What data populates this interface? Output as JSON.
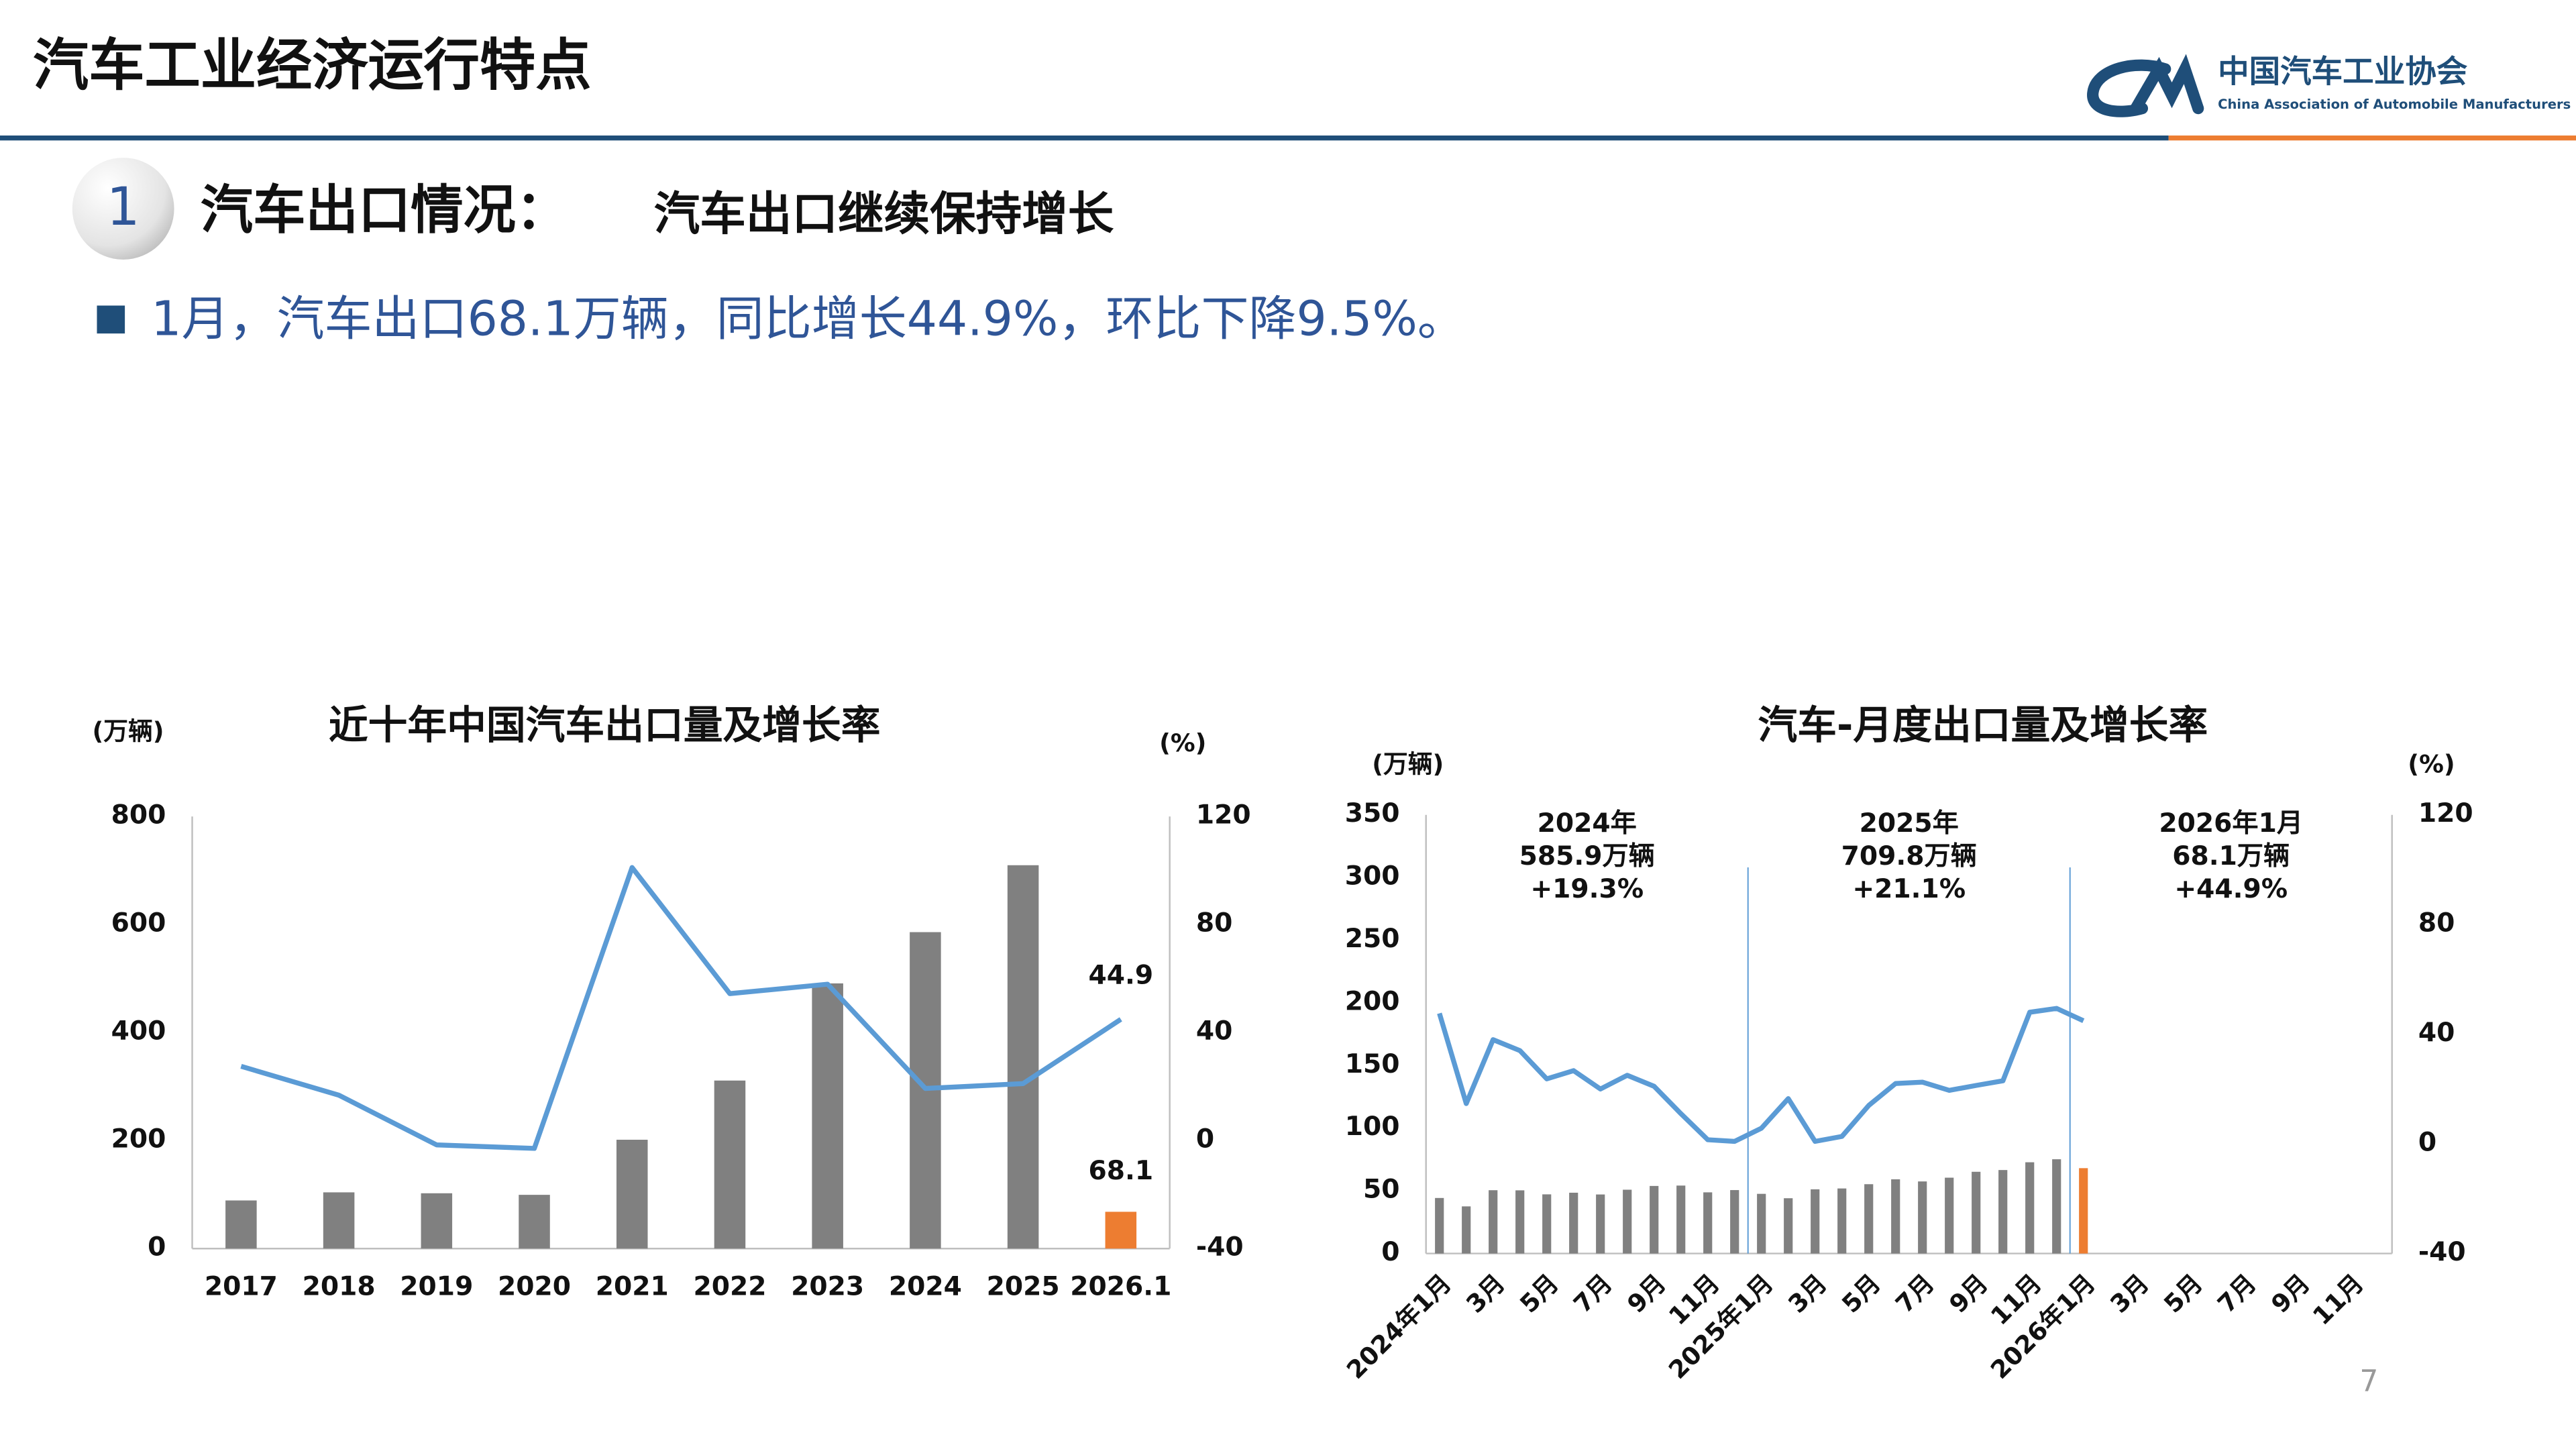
{
  "header": {
    "title": "汽车工业经济运行特点",
    "org": "中国汽车工业协会",
    "org_en": "China Association of Automobile Manufacturers"
  },
  "section": {
    "number": "1",
    "heading": "汽车出口情况：",
    "subheading": "汽车出口继续保持增长"
  },
  "bullet": "1月，汽车出口68.1万辆，同比增长44.9%，环比下降9.5%。",
  "page_number": "7",
  "chart_data": [
    {
      "type": "combo",
      "title": "近十年中国汽车出口量及增长率",
      "ylabel": "(万辆)",
      "y2label": "(%)",
      "categories": [
        "2017",
        "2018",
        "2019",
        "2020",
        "2021",
        "2022",
        "2023",
        "2024",
        "2025",
        "2026.1"
      ],
      "series": [
        {
          "type": "bar",
          "color": "#808080",
          "highlight_color": "#ed7d31",
          "label_last": true,
          "values": [
            89.1,
            104.1,
            102.4,
            99.5,
            201.5,
            311.1,
            491.0,
            585.9,
            709.8,
            68.1
          ]
        },
        {
          "type": "line",
          "axis": "y2",
          "color": "#5b9bd5",
          "label_last": true,
          "values": [
            27.5,
            16.8,
            -1.6,
            -2.9,
            101.1,
            54.4,
            57.9,
            19.3,
            21.1,
            44.9
          ]
        }
      ],
      "ylim": [
        0,
        800
      ],
      "yticks": [
        0,
        200,
        400,
        600,
        800
      ],
      "y2lim": [
        -40,
        120
      ],
      "y2ticks": [
        -40,
        0,
        40,
        80,
        120
      ],
      "grid": false,
      "rotate_labels": false
    },
    {
      "type": "combo",
      "title": "汽车-月度出口量及增长率",
      "ylabel": "(万辆)",
      "y2label": "(%)",
      "categories": [
        "2024年1月",
        null,
        "3月",
        null,
        "5月",
        null,
        "7月",
        null,
        "9月",
        null,
        "11月",
        null,
        "2025年1月",
        null,
        "3月",
        null,
        "5月",
        null,
        "7月",
        null,
        "9月",
        null,
        "11月",
        null,
        "2026年1月",
        null,
        "3月",
        null,
        "5月",
        null,
        "7月",
        null,
        "9月",
        null,
        "11月",
        null
      ],
      "series": [
        {
          "type": "bar",
          "color": "#808080",
          "highlight_color": "#ed7d31",
          "values": [
            44.3,
            37.6,
            50.5,
            50.4,
            47.2,
            48.5,
            47.1,
            50.9,
            53.9,
            54.2,
            48.8,
            50.6,
            47.6,
            44.1,
            51.2,
            51.9,
            55.3,
            59.2,
            57.5,
            60.5,
            65.2,
            66.6,
            72.8,
            75.2,
            68.1,
            null,
            null,
            null,
            null,
            null,
            null,
            null,
            null,
            null,
            null,
            null
          ]
        },
        {
          "type": "line",
          "axis": "y2",
          "color": "#5b9bd5",
          "values": [
            47.6,
            14.7,
            38.0,
            34.0,
            23.7,
            26.7,
            20.0,
            25.0,
            21.0,
            11.0,
            1.5,
            0.9,
            5.7,
            16.5,
            0.9,
            2.7,
            14.0,
            22.0,
            22.5,
            19.5,
            21.3,
            23.0,
            48.0,
            49.4,
            44.9,
            null,
            null,
            null,
            null,
            null,
            null,
            null,
            null,
            null,
            null,
            null
          ]
        }
      ],
      "annotations": [
        {
          "lines": [
            "2024年",
            "585.9万辆",
            "+19.3%"
          ]
        },
        {
          "lines": [
            "2025年",
            "709.8万辆",
            "+21.1%"
          ]
        },
        {
          "lines": [
            "2026年1月",
            "68.1万辆",
            "+44.9%"
          ]
        }
      ],
      "ylim": [
        0,
        350
      ],
      "yticks": [
        0,
        50,
        100,
        150,
        200,
        250,
        300,
        350
      ],
      "y2lim": [
        -40,
        120
      ],
      "y2ticks": [
        -40,
        0,
        40,
        80,
        120
      ],
      "grid": false,
      "rotate_labels": true
    }
  ]
}
